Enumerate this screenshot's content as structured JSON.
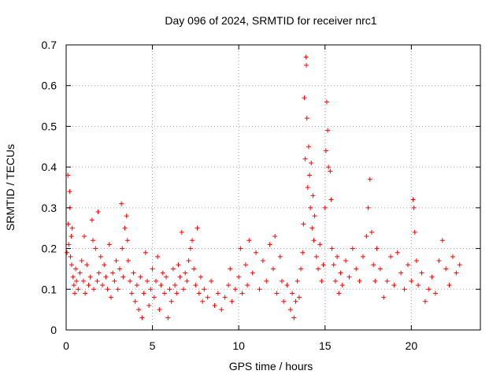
{
  "chart_data": {
    "type": "scatter",
    "title": "Day 096 of 2024, SRMTID for receiver nrc1",
    "xlabel": "GPS time / hours",
    "ylabel": "SRMTID / TECUs",
    "xlim": [
      0,
      24
    ],
    "ylim": [
      0,
      0.7
    ],
    "x_ticks": [
      "0",
      "5",
      "10",
      "15",
      "20"
    ],
    "y_ticks": [
      "0",
      "0.1",
      "0.2",
      "0.3",
      "0.4",
      "0.5",
      "0.6",
      "0.7"
    ],
    "grid": true,
    "marker": "plus",
    "series_color": "#ff0000",
    "series": [
      {
        "name": "SRMTID",
        "points": [
          [
            0.05,
            0.19
          ],
          [
            0.1,
            0.38
          ],
          [
            0.12,
            0.26
          ],
          [
            0.15,
            0.21
          ],
          [
            0.2,
            0.34
          ],
          [
            0.22,
            0.3
          ],
          [
            0.25,
            0.18
          ],
          [
            0.3,
            0.23
          ],
          [
            0.32,
            0.16
          ],
          [
            0.35,
            0.25
          ],
          [
            0.4,
            0.13
          ],
          [
            0.45,
            0.11
          ],
          [
            0.5,
            0.09
          ],
          [
            0.55,
            0.15
          ],
          [
            0.6,
            0.12
          ],
          [
            0.7,
            0.1
          ],
          [
            0.8,
            0.14
          ],
          [
            0.9,
            0.17
          ],
          [
            1.0,
            0.12
          ],
          [
            1.05,
            0.23
          ],
          [
            1.1,
            0.09
          ],
          [
            1.2,
            0.16
          ],
          [
            1.3,
            0.11
          ],
          [
            1.4,
            0.13
          ],
          [
            1.5,
            0.27
          ],
          [
            1.55,
            0.22
          ],
          [
            1.6,
            0.1
          ],
          [
            1.7,
            0.2
          ],
          [
            1.8,
            0.12
          ],
          [
            1.85,
            0.29
          ],
          [
            1.9,
            0.14
          ],
          [
            2.0,
            0.18
          ],
          [
            2.1,
            0.11
          ],
          [
            2.2,
            0.16
          ],
          [
            2.3,
            0.13
          ],
          [
            2.4,
            0.1
          ],
          [
            2.5,
            0.21
          ],
          [
            2.6,
            0.08
          ],
          [
            2.7,
            0.14
          ],
          [
            2.8,
            0.12
          ],
          [
            2.9,
            0.17
          ],
          [
            3.0,
            0.1
          ],
          [
            3.1,
            0.15
          ],
          [
            3.2,
            0.31
          ],
          [
            3.25,
            0.2
          ],
          [
            3.3,
            0.13
          ],
          [
            3.4,
            0.25
          ],
          [
            3.5,
            0.28
          ],
          [
            3.55,
            0.22
          ],
          [
            3.6,
            0.17
          ],
          [
            3.7,
            0.12
          ],
          [
            3.8,
            0.09
          ],
          [
            3.9,
            0.14
          ],
          [
            4.0,
            0.07
          ],
          [
            4.1,
            0.11
          ],
          [
            4.2,
            0.05
          ],
          [
            4.3,
            0.13
          ],
          [
            4.4,
            0.03
          ],
          [
            4.5,
            0.09
          ],
          [
            4.6,
            0.19
          ],
          [
            4.7,
            0.12
          ],
          [
            4.8,
            0.06
          ],
          [
            4.9,
            0.1
          ],
          [
            5.0,
            0.15
          ],
          [
            5.1,
            0.08
          ],
          [
            5.2,
            0.12
          ],
          [
            5.3,
            0.18
          ],
          [
            5.4,
            0.05
          ],
          [
            5.5,
            0.11
          ],
          [
            5.6,
            0.14
          ],
          [
            5.7,
            0.09
          ],
          [
            5.8,
            0.13
          ],
          [
            5.9,
            0.03
          ],
          [
            6.0,
            0.1
          ],
          [
            6.1,
            0.07
          ],
          [
            6.2,
            0.15
          ],
          [
            6.3,
            0.11
          ],
          [
            6.4,
            0.09
          ],
          [
            6.5,
            0.16
          ],
          [
            6.6,
            0.13
          ],
          [
            6.7,
            0.24
          ],
          [
            6.8,
            0.1
          ],
          [
            6.9,
            0.14
          ],
          [
            7.0,
            0.12
          ],
          [
            7.1,
            0.17
          ],
          [
            7.2,
            0.2
          ],
          [
            7.3,
            0.22
          ],
          [
            7.4,
            0.15
          ],
          [
            7.5,
            0.11
          ],
          [
            7.6,
            0.25
          ],
          [
            7.7,
            0.09
          ],
          [
            7.8,
            0.13
          ],
          [
            7.9,
            0.07
          ],
          [
            8.0,
            0.1
          ],
          [
            8.2,
            0.08
          ],
          [
            8.4,
            0.12
          ],
          [
            8.6,
            0.06
          ],
          [
            8.8,
            0.09
          ],
          [
            9.0,
            0.05
          ],
          [
            9.2,
            0.08
          ],
          [
            9.4,
            0.11
          ],
          [
            9.5,
            0.15
          ],
          [
            9.6,
            0.07
          ],
          [
            9.8,
            0.1
          ],
          [
            10.0,
            0.13
          ],
          [
            10.1,
            0.2
          ],
          [
            10.2,
            0.09
          ],
          [
            10.4,
            0.16
          ],
          [
            10.5,
            0.11
          ],
          [
            10.6,
            0.22
          ],
          [
            10.8,
            0.14
          ],
          [
            11.0,
            0.19
          ],
          [
            11.2,
            0.1
          ],
          [
            11.4,
            0.17
          ],
          [
            11.6,
            0.12
          ],
          [
            11.8,
            0.21
          ],
          [
            12.0,
            0.15
          ],
          [
            12.1,
            0.23
          ],
          [
            12.2,
            0.09
          ],
          [
            12.4,
            0.18
          ],
          [
            12.5,
            0.12
          ],
          [
            12.6,
            0.07
          ],
          [
            12.8,
            0.11
          ],
          [
            13.0,
            0.05
          ],
          [
            13.1,
            0.09
          ],
          [
            13.2,
            0.03
          ],
          [
            13.3,
            0.07
          ],
          [
            13.4,
            0.12
          ],
          [
            13.5,
            0.08
          ],
          [
            13.6,
            0.15
          ],
          [
            13.7,
            0.19
          ],
          [
            13.75,
            0.26
          ],
          [
            13.8,
            0.57
          ],
          [
            13.85,
            0.42
          ],
          [
            13.9,
            0.67
          ],
          [
            13.92,
            0.65
          ],
          [
            13.95,
            0.52
          ],
          [
            14.0,
            0.35
          ],
          [
            14.05,
            0.45
          ],
          [
            14.1,
            0.38
          ],
          [
            14.15,
            0.3
          ],
          [
            14.2,
            0.41
          ],
          [
            14.25,
            0.25
          ],
          [
            14.3,
            0.33
          ],
          [
            14.35,
            0.22
          ],
          [
            14.4,
            0.28
          ],
          [
            14.5,
            0.18
          ],
          [
            14.6,
            0.15
          ],
          [
            14.7,
            0.21
          ],
          [
            14.8,
            0.12
          ],
          [
            14.9,
            0.16
          ],
          [
            15.0,
            0.3
          ],
          [
            15.05,
            0.44
          ],
          [
            15.1,
            0.56
          ],
          [
            15.15,
            0.49
          ],
          [
            15.2,
            0.4
          ],
          [
            15.3,
            0.39
          ],
          [
            15.35,
            0.32
          ],
          [
            15.4,
            0.2
          ],
          [
            15.5,
            0.16
          ],
          [
            15.6,
            0.12
          ],
          [
            15.7,
            0.18
          ],
          [
            15.8,
            0.09
          ],
          [
            15.9,
            0.14
          ],
          [
            16.0,
            0.11
          ],
          [
            16.2,
            0.17
          ],
          [
            16.4,
            0.13
          ],
          [
            16.6,
            0.2
          ],
          [
            16.8,
            0.15
          ],
          [
            17.0,
            0.12
          ],
          [
            17.2,
            0.18
          ],
          [
            17.4,
            0.23
          ],
          [
            17.5,
            0.3
          ],
          [
            17.6,
            0.37
          ],
          [
            17.7,
            0.24
          ],
          [
            17.8,
            0.16
          ],
          [
            17.9,
            0.12
          ],
          [
            18.0,
            0.2
          ],
          [
            18.2,
            0.15
          ],
          [
            18.4,
            0.08
          ],
          [
            18.6,
            0.12
          ],
          [
            18.8,
            0.18
          ],
          [
            19.0,
            0.11
          ],
          [
            19.2,
            0.19
          ],
          [
            19.4,
            0.14
          ],
          [
            19.6,
            0.1
          ],
          [
            19.8,
            0.16
          ],
          [
            20.0,
            0.12
          ],
          [
            20.1,
            0.32
          ],
          [
            20.15,
            0.3
          ],
          [
            20.2,
            0.24
          ],
          [
            20.3,
            0.17
          ],
          [
            20.4,
            0.11
          ],
          [
            20.6,
            0.14
          ],
          [
            20.8,
            0.07
          ],
          [
            21.0,
            0.1
          ],
          [
            21.2,
            0.13
          ],
          [
            21.4,
            0.09
          ],
          [
            21.6,
            0.17
          ],
          [
            21.8,
            0.22
          ],
          [
            22.0,
            0.15
          ],
          [
            22.2,
            0.11
          ],
          [
            22.4,
            0.18
          ],
          [
            22.6,
            0.14
          ],
          [
            22.8,
            0.16
          ]
        ]
      }
    ]
  }
}
